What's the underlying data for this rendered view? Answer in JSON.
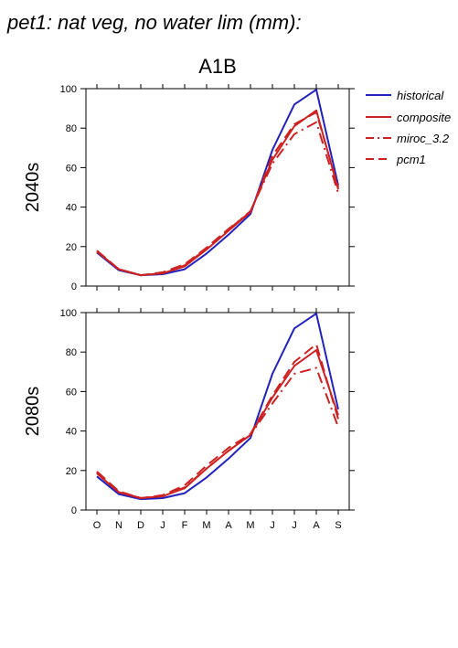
{
  "title": "pet1: nat veg, no water lim (mm):",
  "scenario": "A1B",
  "colors": {
    "historical": "#2222bb",
    "models": "#cc2222"
  },
  "chart_data": [
    {
      "type": "line",
      "row_label": "2040s",
      "categories": [
        "O",
        "N",
        "D",
        "J",
        "F",
        "M",
        "A",
        "M",
        "J",
        "J",
        "A",
        "S"
      ],
      "ylim": [
        0,
        100
      ],
      "yticks": [
        0,
        20,
        40,
        60,
        80,
        100
      ],
      "grid": false,
      "series": [
        {
          "name": "historical",
          "style": "solid",
          "values": [
            17,
            8,
            5.5,
            6,
            8.5,
            16.5,
            26,
            36.5,
            69,
            92,
            99.5,
            51
          ]
        },
        {
          "name": "composite",
          "style": "solid",
          "values": [
            17.5,
            8.5,
            5.5,
            6.5,
            10,
            18.5,
            28,
            37.5,
            64,
            81,
            89,
            49
          ]
        },
        {
          "name": "miroc_3.2",
          "style": "dashdot",
          "values": [
            17.5,
            8.5,
            5.5,
            6.5,
            10.5,
            19,
            28.5,
            38,
            62,
            77,
            83,
            47
          ]
        },
        {
          "name": "pcm1",
          "style": "dashed",
          "values": [
            18,
            8.5,
            5.5,
            7,
            11,
            19.5,
            29,
            37.5,
            66,
            82,
            88,
            50
          ]
        }
      ]
    },
    {
      "type": "line",
      "row_label": "2080s",
      "categories": [
        "O",
        "N",
        "D",
        "J",
        "F",
        "M",
        "A",
        "M",
        "J",
        "J",
        "A",
        "S"
      ],
      "ylim": [
        0,
        100
      ],
      "yticks": [
        0,
        20,
        40,
        60,
        80,
        100
      ],
      "grid": false,
      "series": [
        {
          "name": "historical",
          "style": "solid",
          "values": [
            17,
            8,
            5.5,
            6,
            8.5,
            16.5,
            26,
            36.5,
            69,
            92,
            99.5,
            51
          ]
        },
        {
          "name": "composite",
          "style": "solid",
          "values": [
            18.5,
            9,
            6,
            7,
            11,
            21,
            30,
            38,
            57,
            73,
            81,
            48
          ]
        },
        {
          "name": "miroc_3.2",
          "style": "dashdot",
          "values": [
            19,
            9,
            6,
            7,
            11.5,
            21,
            30,
            38,
            54,
            69,
            72,
            42
          ]
        },
        {
          "name": "pcm1",
          "style": "dashed",
          "values": [
            19.5,
            9.5,
            6,
            7.5,
            12.5,
            22.5,
            31.5,
            38.5,
            58,
            75,
            84,
            46
          ]
        }
      ]
    }
  ],
  "legend": {
    "placement": "right",
    "items": [
      {
        "label": "historical",
        "style": "solid",
        "color": "#2222bb"
      },
      {
        "label": "composite",
        "style": "solid",
        "color": "#cc2222"
      },
      {
        "label": "miroc_3.2",
        "style": "dashdot",
        "color": "#cc2222"
      },
      {
        "label": "pcm1",
        "style": "dashed",
        "color": "#cc2222"
      }
    ]
  }
}
